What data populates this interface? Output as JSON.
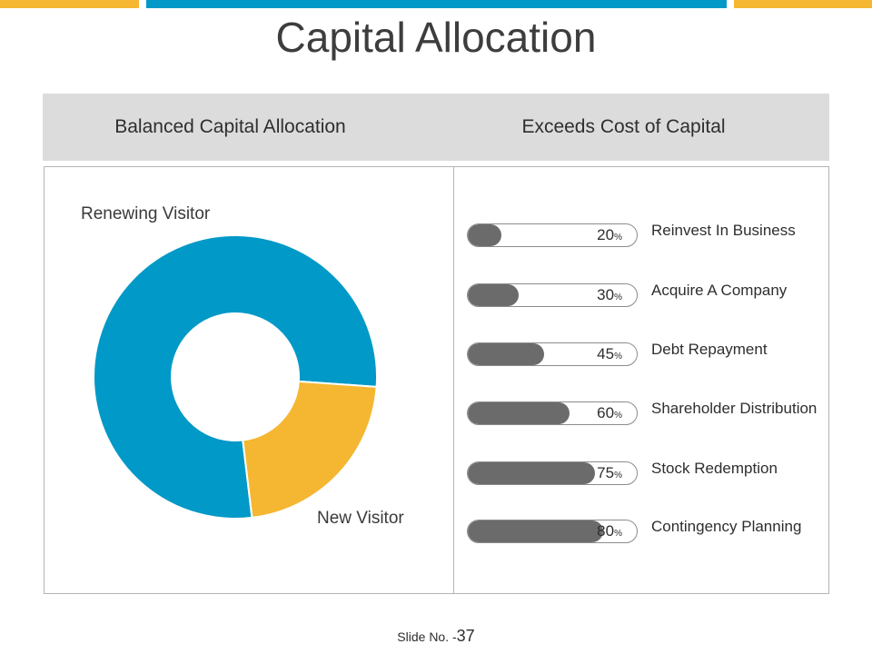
{
  "colors": {
    "accent_yellow": "#f5b731",
    "accent_blue": "#0199c7",
    "bar_fill": "#6b6b6b",
    "header_bg": "#dcdcdc"
  },
  "title": "Capital Allocation",
  "headers": {
    "left": "Balanced Capital Allocation",
    "right": "Exceeds Cost of Capital"
  },
  "chart_data": [
    {
      "type": "pie",
      "variant": "donut",
      "categories": [
        "Renewing Visitor",
        "New Visitor"
      ],
      "values": [
        78,
        22
      ],
      "colors": [
        "#0199c7",
        "#f5b731"
      ]
    },
    {
      "type": "bar",
      "variant": "progress",
      "categories": [
        "Reinvest In Business",
        "Acquire A Company",
        "Debt Repayment",
        "Shareholder Distribution",
        "Stock Redemption",
        "Contingency Planning"
      ],
      "values": [
        20,
        30,
        45,
        60,
        75,
        80
      ],
      "value_labels": [
        "20",
        "30",
        "45",
        "60",
        "75",
        "80"
      ],
      "unit": "%"
    }
  ],
  "footer": {
    "prefix": "Slide No. -",
    "number": "37"
  }
}
